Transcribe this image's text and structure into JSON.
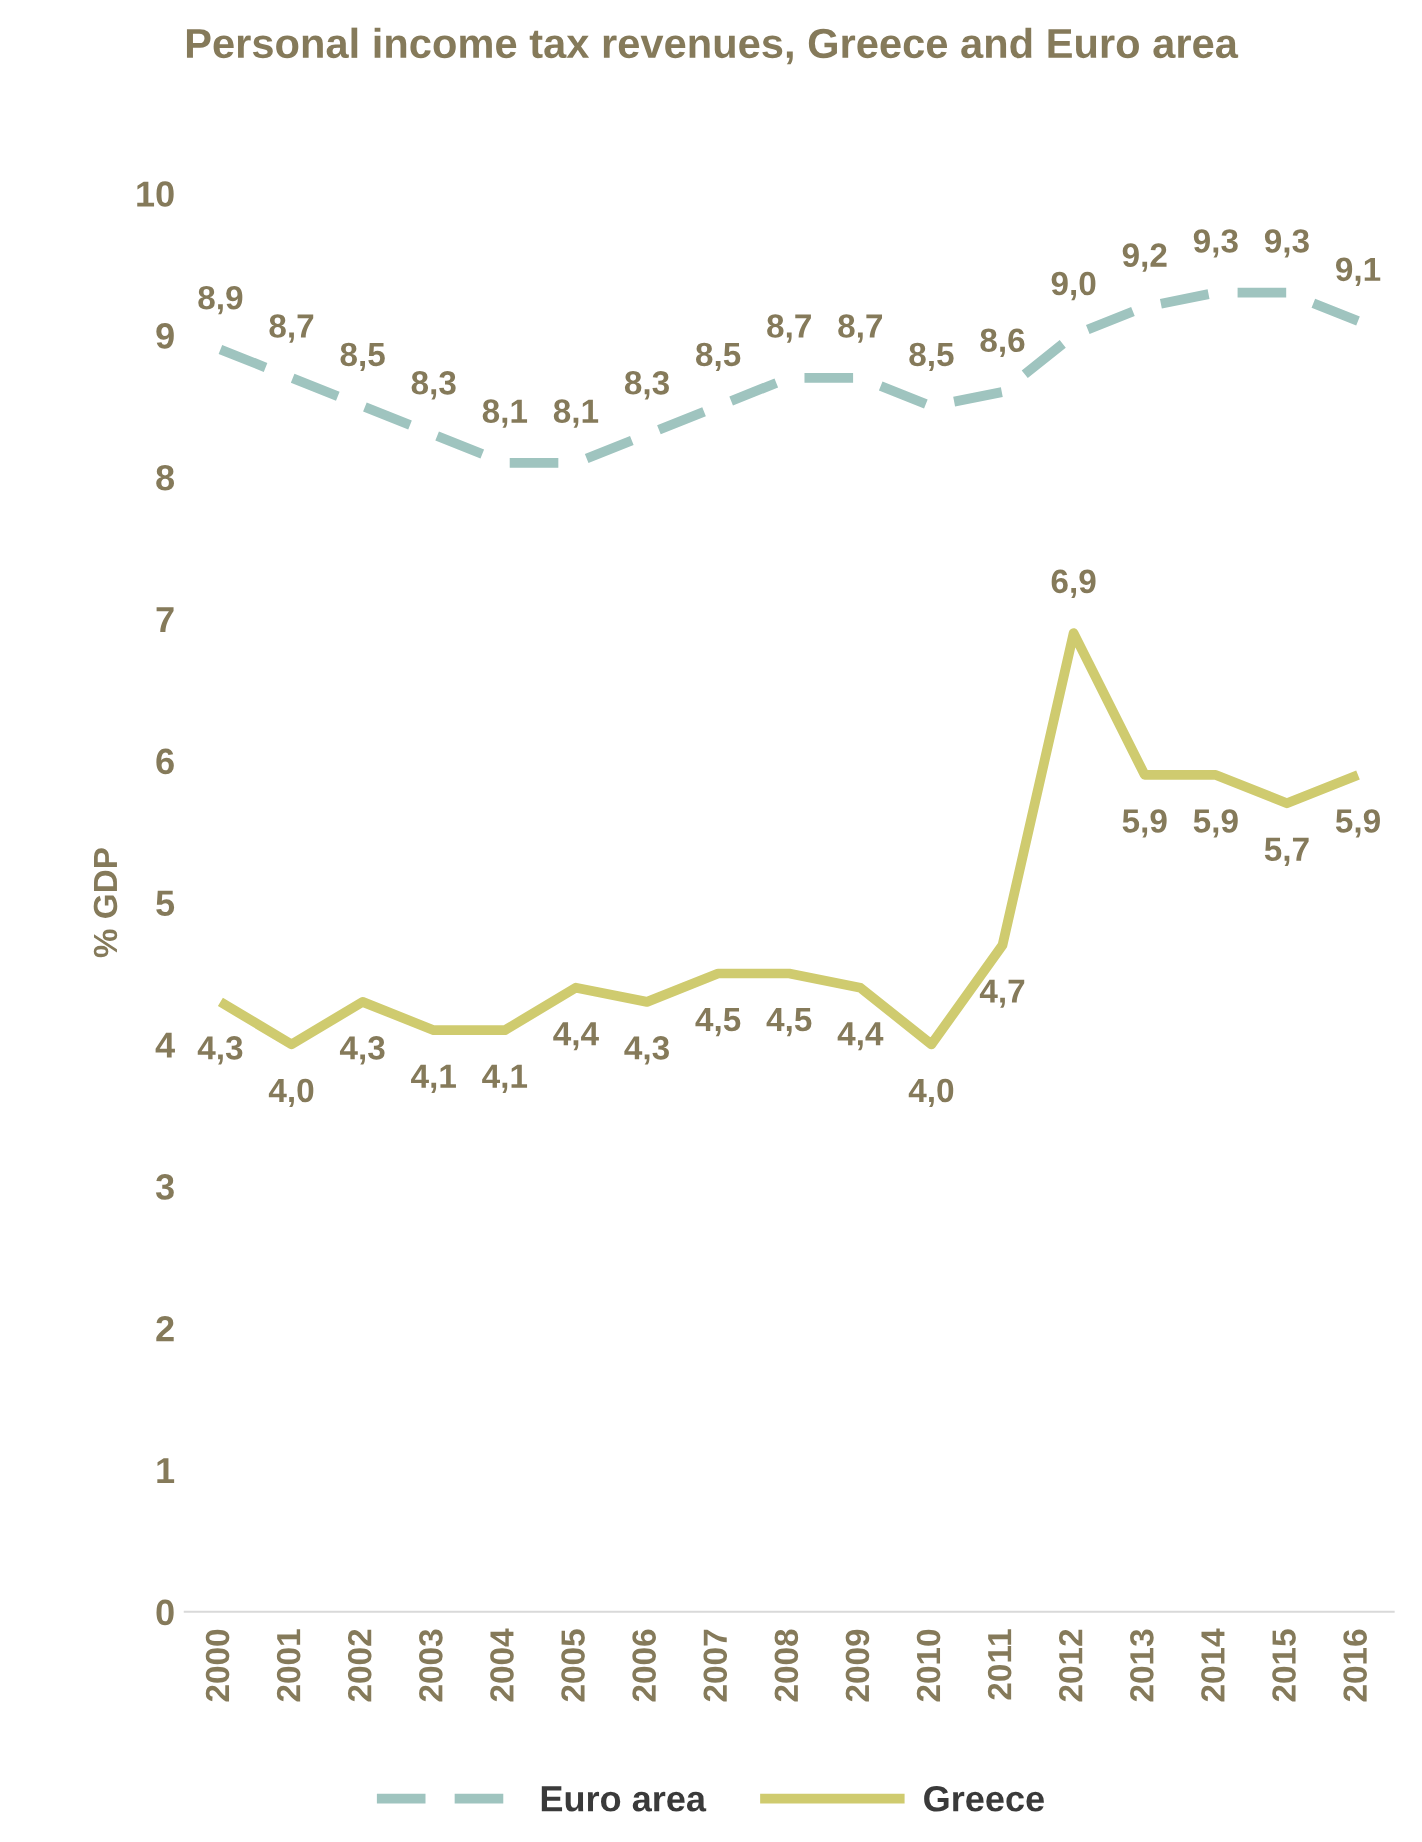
{
  "chart_data": {
    "type": "line",
    "title": "Personal income tax revenues, Greece and Euro area",
    "ylabel": "% GDP",
    "categories": [
      "2000",
      "2001",
      "2002",
      "2003",
      "2004",
      "2005",
      "2006",
      "2007",
      "2008",
      "2009",
      "2010",
      "2011",
      "2012",
      "2013",
      "2014",
      "2015",
      "2016"
    ],
    "series": [
      {
        "name": "Euro area",
        "color": "#9fc4bf",
        "line_style": "dashed",
        "values": [
          8.9,
          8.7,
          8.5,
          8.3,
          8.1,
          8.1,
          8.3,
          8.5,
          8.7,
          8.7,
          8.5,
          8.6,
          9.0,
          9.2,
          9.3,
          9.3,
          9.1
        ],
        "value_labels": [
          "8,9",
          "8,7",
          "8,5",
          "8,3",
          "8,1",
          "8,1",
          "8,3",
          "8,5",
          "8,7",
          "8,7",
          "8,5",
          "8,6",
          "9,0",
          "9,2",
          "9,3",
          "9,3",
          "9,1"
        ]
      },
      {
        "name": "Greece",
        "color": "#cfcb6f",
        "line_style": "solid",
        "values": [
          4.3,
          4.0,
          4.3,
          4.1,
          4.1,
          4.4,
          4.3,
          4.5,
          4.5,
          4.4,
          4.0,
          4.7,
          6.9,
          5.9,
          5.9,
          5.7,
          5.9
        ],
        "value_labels": [
          "4,3",
          "4,0",
          "4,3",
          "4,1",
          "4,1",
          "4,4",
          "4,3",
          "4,5",
          "4,5",
          "4,4",
          "4,0",
          "4,7",
          "6,9",
          "5,9",
          "5,9",
          "5,7",
          "5,9"
        ]
      }
    ],
    "ylim": [
      0,
      10
    ],
    "yticks": [
      0,
      1,
      2,
      3,
      4,
      5,
      6,
      7,
      8,
      9,
      10
    ],
    "grid": false,
    "legend": "bottom",
    "marker": "none"
  }
}
